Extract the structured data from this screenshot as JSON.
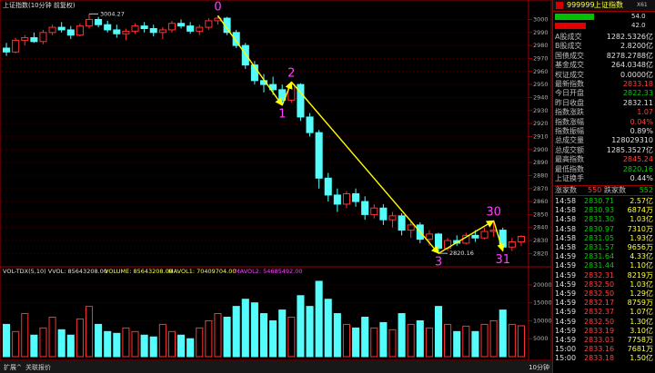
{
  "chart_header": {
    "title": "上证指数(10分钟 前复权)",
    "high_label": "3004.27",
    "low_label": "2820.16"
  },
  "price_axis": {
    "ylim": [
      2814,
      3008
    ],
    "yticks": [
      2820,
      2830,
      2840,
      2850,
      2860,
      2870,
      2880,
      2890,
      2900,
      2910,
      2920,
      2930,
      2940,
      2950,
      2960,
      2970,
      2980,
      2990,
      3000
    ]
  },
  "candles": [
    [
      2978,
      2982,
      2972,
      2975
    ],
    [
      2975,
      2986,
      2974,
      2984
    ],
    [
      2984,
      2988,
      2980,
      2986
    ],
    [
      2986,
      2990,
      2982,
      2983
    ],
    [
      2983,
      2992,
      2981,
      2990
    ],
    [
      2990,
      2996,
      2988,
      2994
    ],
    [
      2994,
      2998,
      2990,
      2992
    ],
    [
      2992,
      2995,
      2985,
      2988
    ],
    [
      2988,
      2997,
      2987,
      2995
    ],
    [
      2995,
      3004.27,
      2993,
      3000
    ],
    [
      3000,
      3002,
      2994,
      2996
    ],
    [
      2996,
      2999,
      2990,
      2992
    ],
    [
      2992,
      2996,
      2986,
      2989
    ],
    [
      2989,
      2993,
      2984,
      2991
    ],
    [
      2991,
      2997,
      2989,
      2995
    ],
    [
      2995,
      2998,
      2990,
      2993
    ],
    [
      2993,
      2996,
      2987,
      2990
    ],
    [
      2990,
      2994,
      2985,
      2992
    ],
    [
      2992,
      2999,
      2990,
      2997
    ],
    [
      2997,
      3000,
      2993,
      2995
    ],
    [
      2995,
      2998,
      2989,
      2991
    ],
    [
      2991,
      2996,
      2988,
      2994
    ],
    [
      2994,
      3001,
      2992,
      2999
    ],
    [
      2999,
      3003,
      2996,
      3001
    ],
    [
      3001,
      3002,
      2988,
      2990
    ],
    [
      2990,
      2992,
      2978,
      2980
    ],
    [
      2980,
      2982,
      2962,
      2965
    ],
    [
      2965,
      2968,
      2950,
      2953
    ],
    [
      2953,
      2958,
      2944,
      2950
    ],
    [
      2950,
      2956,
      2942,
      2946
    ],
    [
      2946,
      2950,
      2934,
      2938
    ],
    [
      2938,
      2952,
      2936,
      2950
    ],
    [
      2950,
      2951,
      2922,
      2925
    ],
    [
      2925,
      2928,
      2910,
      2913
    ],
    [
      2913,
      2915,
      2870,
      2878
    ],
    [
      2878,
      2882,
      2860,
      2865
    ],
    [
      2865,
      2870,
      2852,
      2858
    ],
    [
      2858,
      2868,
      2855,
      2866
    ],
    [
      2866,
      2870,
      2856,
      2860
    ],
    [
      2860,
      2864,
      2846,
      2850
    ],
    [
      2850,
      2858,
      2847,
      2855
    ],
    [
      2855,
      2858,
      2842,
      2846
    ],
    [
      2846,
      2852,
      2840,
      2849
    ],
    [
      2849,
      2851,
      2834,
      2838
    ],
    [
      2838,
      2845,
      2832,
      2842
    ],
    [
      2842,
      2844,
      2828,
      2831
    ],
    [
      2831,
      2838,
      2826,
      2835
    ],
    [
      2835,
      2836,
      2820.16,
      2824
    ],
    [
      2824,
      2832,
      2822,
      2830
    ],
    [
      2830,
      2834,
      2826,
      2828
    ],
    [
      2828,
      2836,
      2827,
      2834
    ],
    [
      2834,
      2838,
      2829,
      2832
    ],
    [
      2832,
      2840,
      2831,
      2837
    ],
    [
      2837,
      2845.24,
      2833,
      2838
    ],
    [
      2838,
      2840,
      2822,
      2825
    ],
    [
      2825,
      2832,
      2822,
      2829
    ],
    [
      2829,
      2834,
      2826,
      2833.18
    ]
  ],
  "annotations": [
    {
      "label": "0",
      "candle": 23,
      "price": 3003
    },
    {
      "label": "1",
      "candle": 30,
      "price": 2934
    },
    {
      "label": "2",
      "candle": 31,
      "price": 2952
    },
    {
      "label": "3",
      "candle": 47,
      "price": 2820.16
    },
    {
      "label": "30",
      "candle": 53,
      "price": 2845.24
    },
    {
      "label": "31",
      "candle": 54,
      "price": 2822
    }
  ],
  "volume": {
    "header": "VOL-TDX(5,10)  VVOL: 85643208.00",
    "volume_label": "VOLUME: 85643208.00",
    "mavol1_label": "MAVOL1: 70409704.00",
    "mavol2_label": "MAVOL2: 54685492.00",
    "ylim": [
      0,
      22000
    ],
    "yticks": [
      5000,
      10000,
      15000,
      20000
    ],
    "values": [
      9000,
      7000,
      12000,
      6000,
      8000,
      11000,
      7500,
      6000,
      10500,
      14000,
      9000,
      7000,
      6500,
      8000,
      7000,
      6000,
      5500,
      9000,
      7000,
      6000,
      5000,
      8000,
      10000,
      12000,
      11000,
      14000,
      16000,
      15000,
      12000,
      10000,
      13000,
      11000,
      17000,
      14000,
      21000,
      16000,
      12000,
      9000,
      8000,
      11000,
      8000,
      9500,
      7500,
      12000,
      9000,
      10000,
      8000,
      14000,
      9000,
      7000,
      8500,
      7000,
      9000,
      10000,
      13000,
      9000,
      8600
    ]
  },
  "bottom_bar": {
    "tabs": [
      "扩展^",
      "关联报价"
    ],
    "period": "10分钟"
  },
  "quote": {
    "code": "999999",
    "name": "上证指数",
    "suffix": "X61",
    "bars": [
      {
        "value": 54,
        "label": "54.0",
        "color": "#00c000"
      },
      {
        "value": 42,
        "label": "42.0",
        "color": "#e00000"
      }
    ],
    "rows": [
      {
        "label": "A股成交",
        "value": "1282.5326亿",
        "color": "#e0e0e0"
      },
      {
        "label": "B股成交",
        "value": "2.8200亿",
        "color": "#e0e0e0"
      },
      {
        "label": "国债成交",
        "value": "8278.2788亿",
        "color": "#e0e0e0"
      },
      {
        "label": "基金成交",
        "value": "264.0348亿",
        "color": "#e0e0e0"
      },
      {
        "label": "权证成交",
        "value": "0.0000亿",
        "color": "#e0e0e0"
      },
      {
        "label": "最新指数",
        "value": "2833.18",
        "color": "#ff4040"
      },
      {
        "label": "今日开盘",
        "value": "2822.33",
        "color": "#00d000"
      },
      {
        "label": "昨日收盘",
        "value": "2832.11",
        "color": "#e0e0e0"
      },
      {
        "label": "指数涨跌",
        "value": "1.07",
        "color": "#ff4040"
      },
      {
        "label": "指数涨幅",
        "value": "0.04%",
        "color": "#ff4040"
      },
      {
        "label": "指数振幅",
        "value": "0.89%",
        "color": "#e0e0e0"
      },
      {
        "label": "总成交量",
        "value": "128029310",
        "color": "#e0e0e0"
      },
      {
        "label": "总成交额",
        "value": "1285.3527亿",
        "color": "#e0e0e0"
      },
      {
        "label": "最高指数",
        "value": "2845.24",
        "color": "#ff4040"
      },
      {
        "label": "最低指数",
        "value": "2820.16",
        "color": "#00d000"
      },
      {
        "label": "上证换手",
        "value": "0.44%",
        "color": "#e0e0e0"
      }
    ],
    "breadth": {
      "up_label": "涨家数",
      "up": "550",
      "down_label": "跌家数",
      "down": "552"
    },
    "reference_row": 7,
    "trades": [
      [
        "14:58",
        "2830.71",
        "2.57亿"
      ],
      [
        "14:58",
        "2830.93",
        "6874万"
      ],
      [
        "14:58",
        "2831.30",
        "1.03亿"
      ],
      [
        "14:58",
        "2830.97",
        "7310万"
      ],
      [
        "14:58",
        "2831.05",
        "1.93亿"
      ],
      [
        "14:58",
        "2831.57",
        "9656万"
      ],
      [
        "14:59",
        "2831.64",
        "4.33亿"
      ],
      [
        "14:59",
        "2831.44",
        "1.10亿"
      ],
      [
        "14:59",
        "2832.31",
        "8219万"
      ],
      [
        "14:59",
        "2832.50",
        "1.03亿"
      ],
      [
        "14:59",
        "2832.50",
        "1.29亿"
      ],
      [
        "14:59",
        "2832.17",
        "8759万"
      ],
      [
        "14:59",
        "2832.37",
        "1.07亿"
      ],
      [
        "14:59",
        "2832.50",
        "1.30亿"
      ],
      [
        "14:59",
        "2833.19",
        "3.10亿"
      ],
      [
        "14:59",
        "2833.03",
        "7758万"
      ],
      [
        "15:00",
        "2833.16",
        "7681万"
      ],
      [
        "15:00",
        "2833.18",
        "1.50亿"
      ]
    ]
  }
}
